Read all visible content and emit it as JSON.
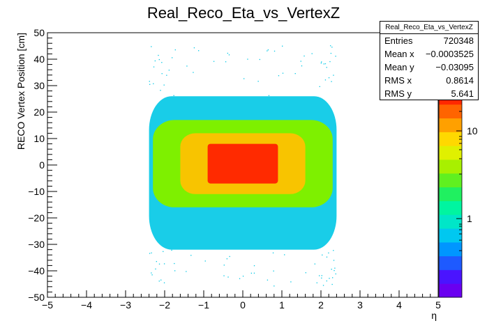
{
  "title": "Real_Reco_Eta_vs_VertexZ",
  "stats": {
    "name": "Real_Reco_Eta_vs_VertexZ",
    "rows": [
      {
        "label": "Entries",
        "value": "720348"
      },
      {
        "label": "Mean x",
        "value": "−0.0003525"
      },
      {
        "label": "Mean y",
        "value": "−0.03095"
      },
      {
        "label": "RMS x",
        "value": "0.8614"
      },
      {
        "label": "RMS y",
        "value": "5.641"
      }
    ]
  },
  "chart_data": {
    "type": "heatmap",
    "title": "Real_Reco_Eta_vs_VertexZ",
    "xlabel": "η",
    "ylabel": "RECO Vertex Position [cm]",
    "xlim": [
      -5,
      5
    ],
    "ylim": [
      -50,
      50
    ],
    "x_ticks": [
      "−5",
      "−4",
      "−3",
      "−2",
      "−1",
      "0",
      "1",
      "2",
      "3",
      "4",
      "5"
    ],
    "y_ticks": [
      "−50",
      "−40",
      "−30",
      "−20",
      "−10",
      "0",
      "10",
      "20",
      "30",
      "40",
      "50"
    ],
    "z_scale": "log",
    "z_ticks": [
      "1",
      "10"
    ],
    "colormap": "rainbow",
    "regions": [
      {
        "level": "sparse",
        "color": "#00c8e6",
        "x_range": [
          -2.4,
          2.4
        ],
        "y_range": [
          -32,
          26
        ]
      },
      {
        "level": "medium",
        "color": "#7ef000",
        "x_range": [
          -2.3,
          2.3
        ],
        "y_range": [
          -16,
          17
        ]
      },
      {
        "level": "high",
        "color": "#f8c400",
        "x_range": [
          -1.6,
          1.6
        ],
        "y_range": [
          -11,
          12
        ]
      },
      {
        "level": "peak",
        "color": "#ff2a00",
        "x_range": [
          -0.9,
          0.9
        ],
        "y_range": [
          -7,
          8
        ]
      }
    ],
    "colors": {
      "palette": [
        "#6a00f0",
        "#4a14ff",
        "#1e5aff",
        "#0096ff",
        "#00c8f0",
        "#00e6c8",
        "#00f5a0",
        "#20f060",
        "#60f020",
        "#a8f000",
        "#e0f000",
        "#ffd800",
        "#ffa000",
        "#ff6400",
        "#ff2800"
      ]
    }
  }
}
